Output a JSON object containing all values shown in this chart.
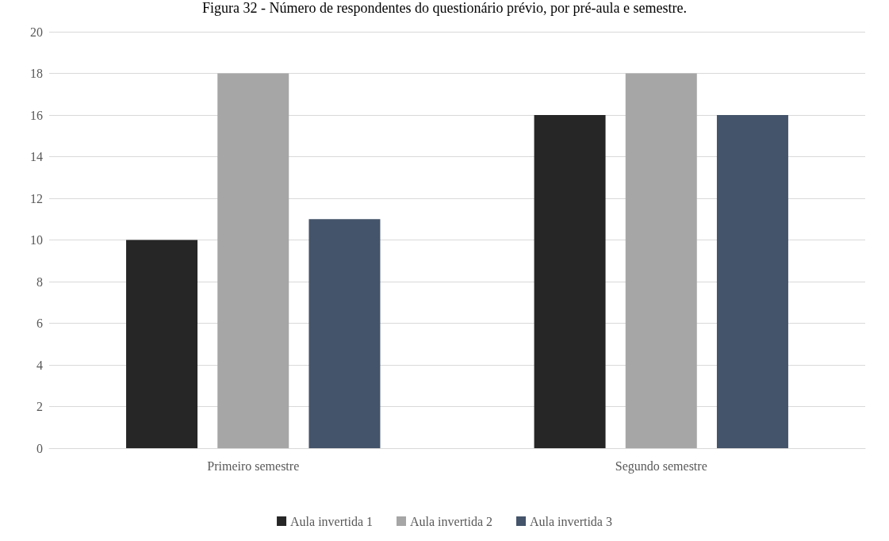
{
  "chart_data": {
    "type": "bar",
    "title": "Figura 32 - Número de respondentes do questionário prévio, por pré-aula e semestre.",
    "categories": [
      "Primeiro semestre",
      "Segundo semestre"
    ],
    "series": [
      {
        "name": "Aula invertida 1",
        "color": "#262626",
        "values": [
          10,
          16
        ]
      },
      {
        "name": "Aula invertida 2",
        "color": "#a6a6a6",
        "values": [
          18,
          18
        ]
      },
      {
        "name": "Aula invertida 3",
        "color": "#44546a",
        "values": [
          11,
          16
        ]
      }
    ],
    "ylim": [
      0,
      20
    ],
    "yticks": [
      0,
      2,
      4,
      6,
      8,
      10,
      12,
      14,
      16,
      18,
      20
    ],
    "grid": "y",
    "legend": "bottom"
  }
}
